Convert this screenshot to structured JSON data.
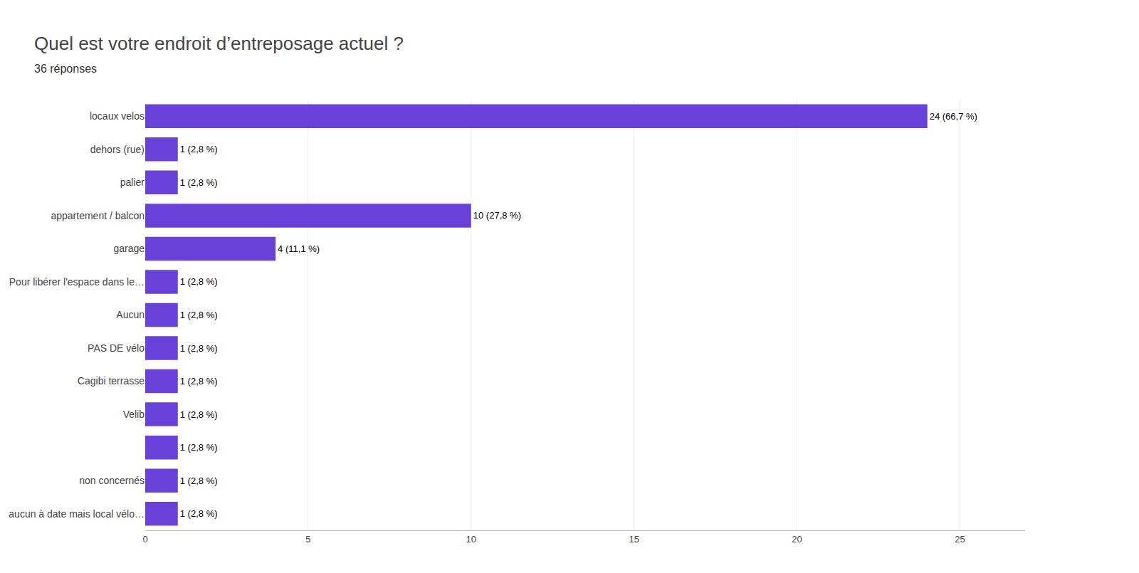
{
  "chart_data": {
    "type": "bar",
    "orientation": "horizontal",
    "title": "Quel est votre endroit d’entreposage actuel ?",
    "subtitle": "36 réponses",
    "categories": [
      "locaux velos",
      "dehors (rue)",
      "palier",
      "appartement / balcon",
      "garage",
      "Pour libérer l'espace dans le…",
      "Aucun",
      "PAS DE vélo",
      "Cagibi terrasse",
      "Velib",
      null,
      "non concernés",
      "aucun à date mais local vélo…"
    ],
    "values": [
      24,
      1,
      1,
      10,
      4,
      1,
      1,
      1,
      1,
      1,
      1,
      1,
      1
    ],
    "value_labels": [
      "24 (66,7 %)",
      "1 (2,8 %)",
      "1 (2,8 %)",
      "10 (27,8 %)",
      "4 (11,1 %)",
      "1 (2,8 %)",
      "1 (2,8 %)",
      "1 (2,8 %)",
      "1 (2,8 %)",
      "1 (2,8 %)",
      "1 (2,8 %)",
      "1 (2,8 %)",
      "1 (2,8 %)"
    ],
    "data_labels": true,
    "color": "#6741d9",
    "xlim": [
      0,
      27
    ],
    "xticks": [
      0,
      5,
      10,
      15,
      20,
      25
    ],
    "grid": true
  }
}
